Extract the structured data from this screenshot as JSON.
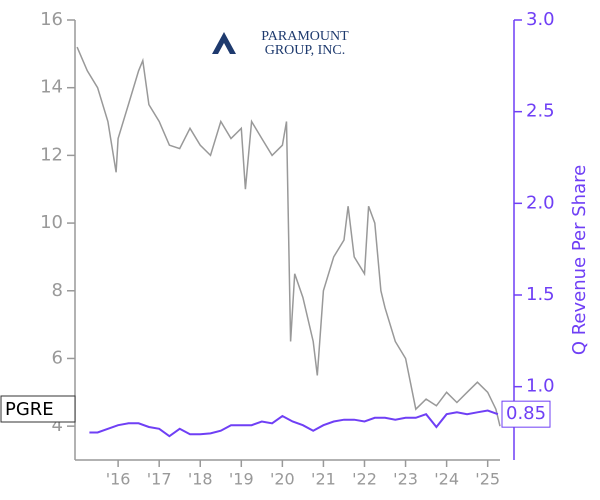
{
  "logo": {
    "line1": "PARAMOUNT",
    "line2": "GROUP, INC."
  },
  "chart_data": {
    "type": "line",
    "xlim": [
      2014.95,
      2025.3
    ],
    "xticks": [
      {
        "value": 2016,
        "label": "'16"
      },
      {
        "value": 2017,
        "label": "'17"
      },
      {
        "value": 2018,
        "label": "'18"
      },
      {
        "value": 2019,
        "label": "'19"
      },
      {
        "value": 2020,
        "label": "'20"
      },
      {
        "value": 2021,
        "label": "'21"
      },
      {
        "value": 2022,
        "label": "'22"
      },
      {
        "value": 2023,
        "label": "'23"
      },
      {
        "value": 2024,
        "label": "'24"
      },
      {
        "value": 2025,
        "label": "'25"
      }
    ],
    "ylim": [
      3,
      16
    ],
    "yticks": [
      4,
      6,
      8,
      10,
      12,
      14,
      16
    ],
    "y2lim": [
      0.6,
      3.0
    ],
    "y2ticks": [
      {
        "value": 1,
        "label": "1.0"
      },
      1.5,
      {
        "value": 2,
        "label": "2.0"
      },
      2.5,
      {
        "value": 3,
        "label": "3.0"
      }
    ],
    "y2label": "Q Revenue Per Share",
    "series": [
      {
        "name": "PGRE",
        "color": "#999999",
        "x": [
          2015.0,
          2015.25,
          2015.5,
          2015.75,
          2015.95,
          2016.0,
          2016.25,
          2016.5,
          2016.6,
          2016.75,
          2017.0,
          2017.25,
          2017.5,
          2017.75,
          2018.0,
          2018.25,
          2018.5,
          2018.75,
          2019.0,
          2019.1,
          2019.25,
          2019.5,
          2019.75,
          2020.0,
          2020.1,
          2020.2,
          2020.3,
          2020.5,
          2020.75,
          2020.85,
          2021.0,
          2021.25,
          2021.5,
          2021.6,
          2021.75,
          2022.0,
          2022.1,
          2022.25,
          2022.4,
          2022.5,
          2022.75,
          2023.0,
          2023.25,
          2023.5,
          2023.75,
          2024.0,
          2024.25,
          2024.5,
          2024.75,
          2025.0,
          2025.2,
          2025.3
        ],
        "values": [
          15.2,
          14.5,
          14.0,
          13.0,
          11.5,
          12.5,
          13.5,
          14.5,
          14.8,
          13.5,
          13.0,
          12.3,
          12.2,
          12.8,
          12.3,
          12.0,
          13.0,
          12.5,
          12.8,
          11.0,
          13.0,
          12.5,
          12.0,
          12.3,
          13.0,
          6.5,
          8.5,
          7.8,
          6.5,
          5.5,
          8.0,
          9.0,
          9.5,
          10.5,
          9.0,
          8.5,
          10.5,
          10.0,
          8.0,
          7.5,
          6.5,
          6.0,
          4.5,
          4.8,
          4.6,
          5.0,
          4.7,
          5.0,
          5.3,
          5.0,
          4.5,
          4.0
        ]
      },
      {
        "color": "#6f3ff5",
        "axis": "y2",
        "end_label": "0.85",
        "x": [
          2015.3,
          2015.5,
          2015.75,
          2016.0,
          2016.25,
          2016.5,
          2016.75,
          2017.0,
          2017.25,
          2017.5,
          2017.75,
          2018.0,
          2018.25,
          2018.5,
          2018.75,
          2019.0,
          2019.25,
          2019.5,
          2019.75,
          2020.0,
          2020.25,
          2020.5,
          2020.75,
          2021.0,
          2021.25,
          2021.5,
          2021.75,
          2022.0,
          2022.25,
          2022.5,
          2022.75,
          2023.0,
          2023.25,
          2023.5,
          2023.75,
          2024.0,
          2024.25,
          2024.5,
          2024.75,
          2025.0,
          2025.25
        ],
        "values": [
          0.75,
          0.75,
          0.77,
          0.79,
          0.8,
          0.8,
          0.78,
          0.77,
          0.73,
          0.77,
          0.74,
          0.74,
          0.745,
          0.76,
          0.79,
          0.79,
          0.79,
          0.81,
          0.8,
          0.84,
          0.81,
          0.79,
          0.76,
          0.79,
          0.81,
          0.82,
          0.82,
          0.81,
          0.83,
          0.83,
          0.82,
          0.83,
          0.83,
          0.85,
          0.78,
          0.85,
          0.86,
          0.85,
          0.86,
          0.87,
          0.85
        ]
      }
    ]
  }
}
